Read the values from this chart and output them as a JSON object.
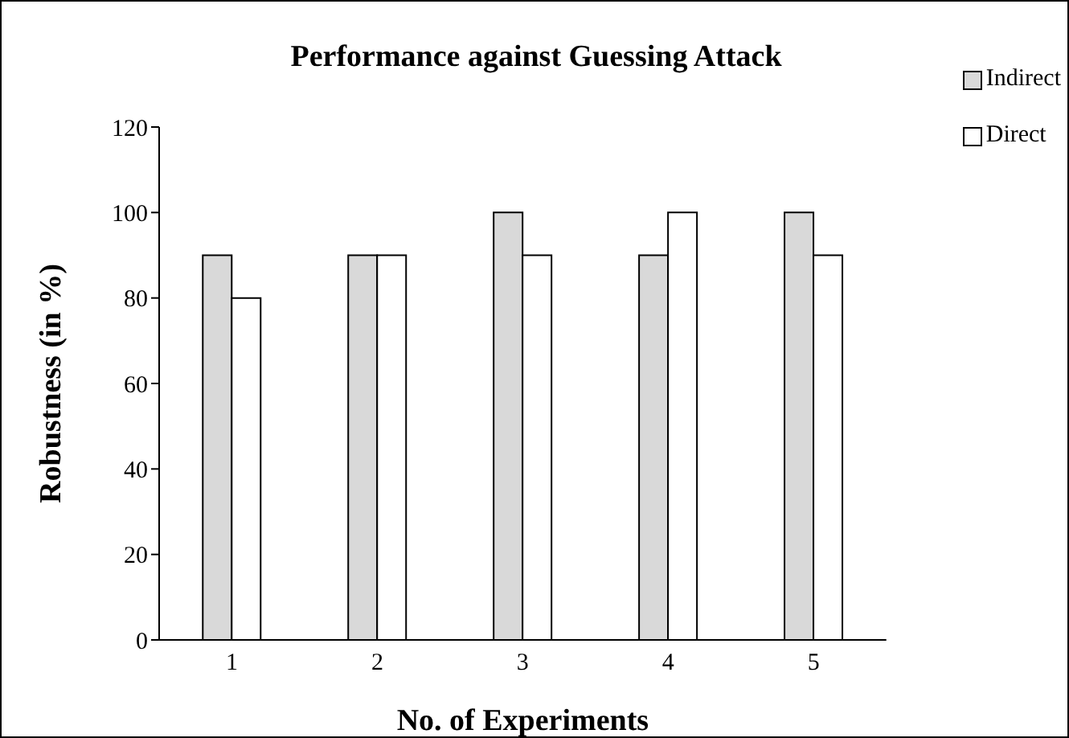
{
  "chart_data": {
    "type": "bar",
    "title": "Performance against Guessing Attack",
    "xlabel": "No. of Experiments",
    "ylabel": "Robustness (in %)",
    "categories": [
      "1",
      "2",
      "3",
      "4",
      "5"
    ],
    "series": [
      {
        "name": "Indirect",
        "color": "#d9d9d9",
        "values": [
          90,
          90,
          100,
          90,
          100
        ]
      },
      {
        "name": "Direct",
        "color": "#ffffff",
        "values": [
          80,
          90,
          90,
          100,
          90
        ]
      }
    ],
    "ylim": [
      0,
      120
    ],
    "yticks": [
      0,
      20,
      40,
      60,
      80,
      100,
      120
    ],
    "grid": false,
    "legend": "top right"
  }
}
